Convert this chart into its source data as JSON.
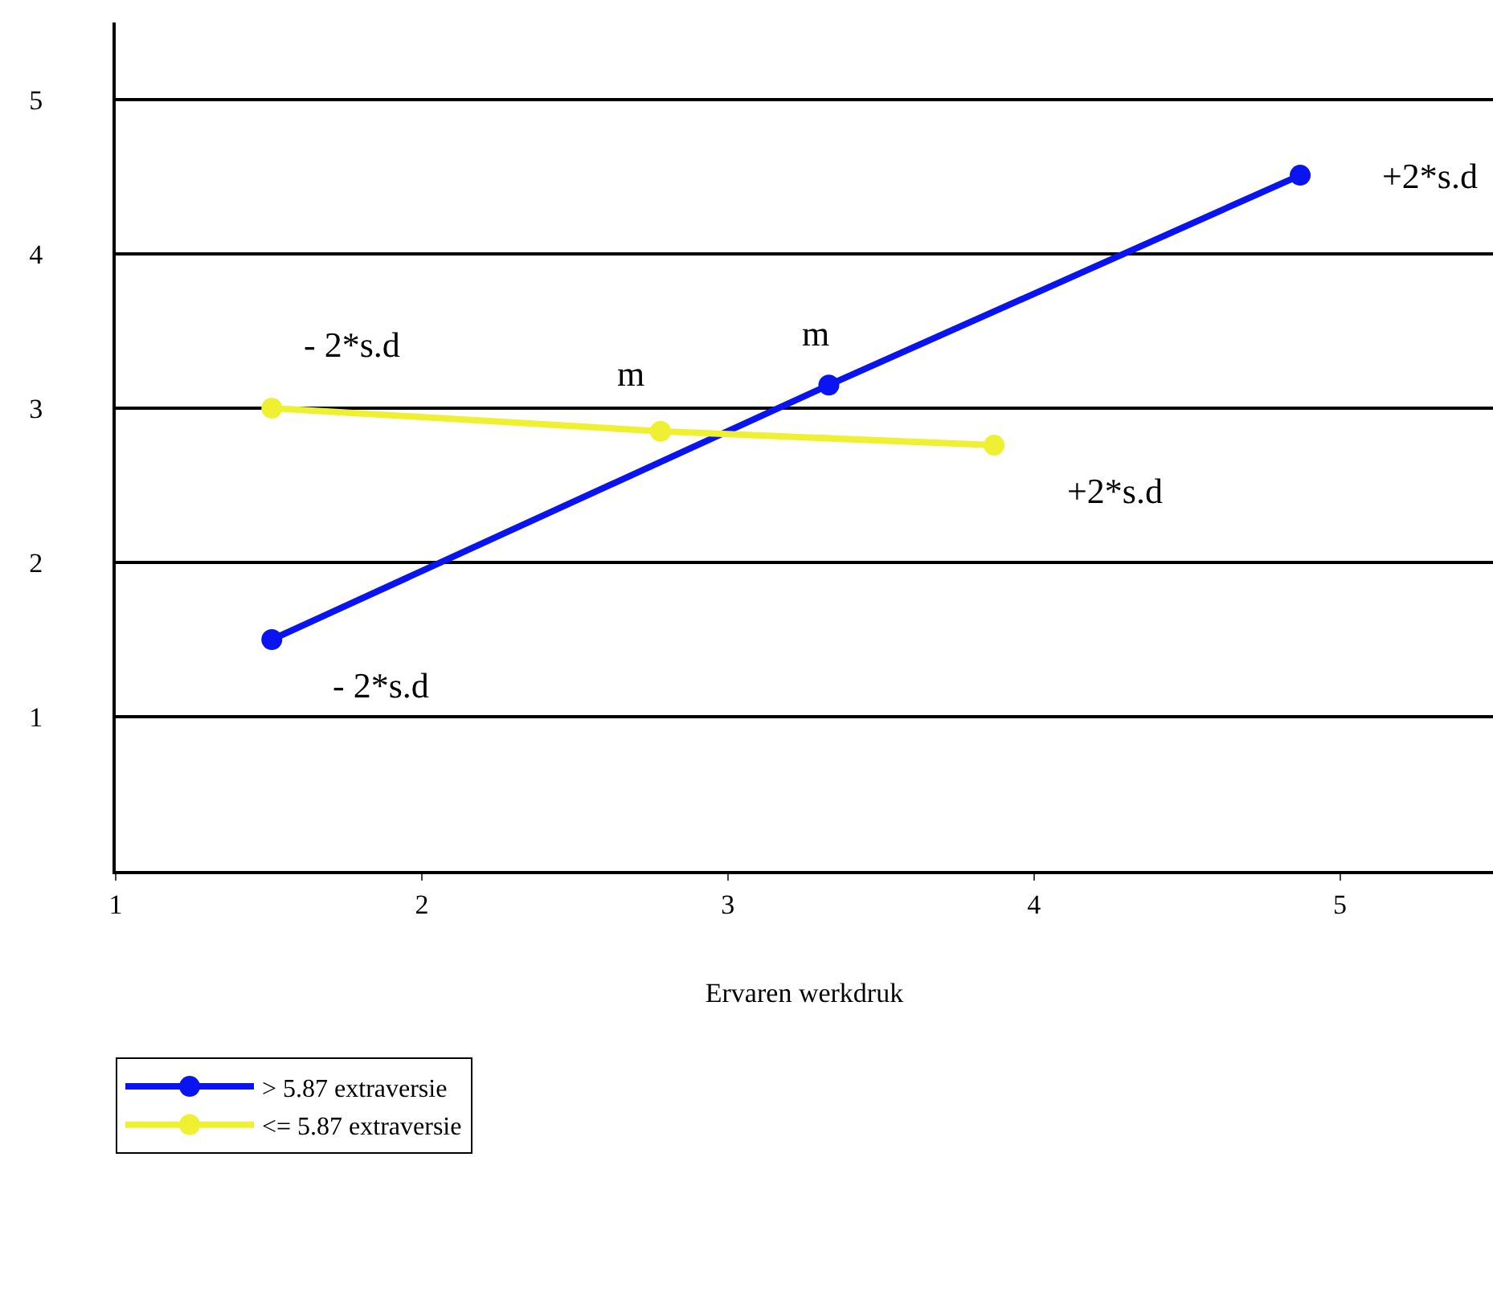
{
  "chart_data": {
    "type": "line",
    "xlabel": "Ervaren werkdruk",
    "series": [
      {
        "name": "> 5.87 extraversie",
        "color": "#0a14f0",
        "x": [
          1.51,
          3.33,
          4.87
        ],
        "values": [
          1.5,
          3.15,
          4.51
        ]
      },
      {
        "name": "<= 5.87 extraversie",
        "color": "#f0f032",
        "x": [
          1.51,
          2.78,
          3.87
        ],
        "values": [
          3.0,
          2.85,
          2.76
        ]
      }
    ],
    "annotations": [
      {
        "text": "- 2*s.d",
        "x": 1.51,
        "y": 3.0
      },
      {
        "text": "m",
        "x": 2.78,
        "y": 2.85
      },
      {
        "text": "m",
        "x": 3.33,
        "y": 3.15
      },
      {
        "text": "+2*s.d",
        "x": 4.87,
        "y": 4.51
      },
      {
        "text": "+2*s.d",
        "x": 3.87,
        "y": 2.76
      },
      {
        "text": "- 2*s.d",
        "x": 1.51,
        "y": 1.5
      }
    ],
    "xlim": [
      1,
      5.5
    ],
    "xticks": [
      1,
      2,
      3,
      4,
      5
    ],
    "ylim": [
      0,
      5.5
    ],
    "yticks": [
      1,
      2,
      3,
      4,
      5
    ],
    "grid": "y",
    "legend": "bottom left",
    "marker": "circle",
    "line_style": "solid"
  }
}
